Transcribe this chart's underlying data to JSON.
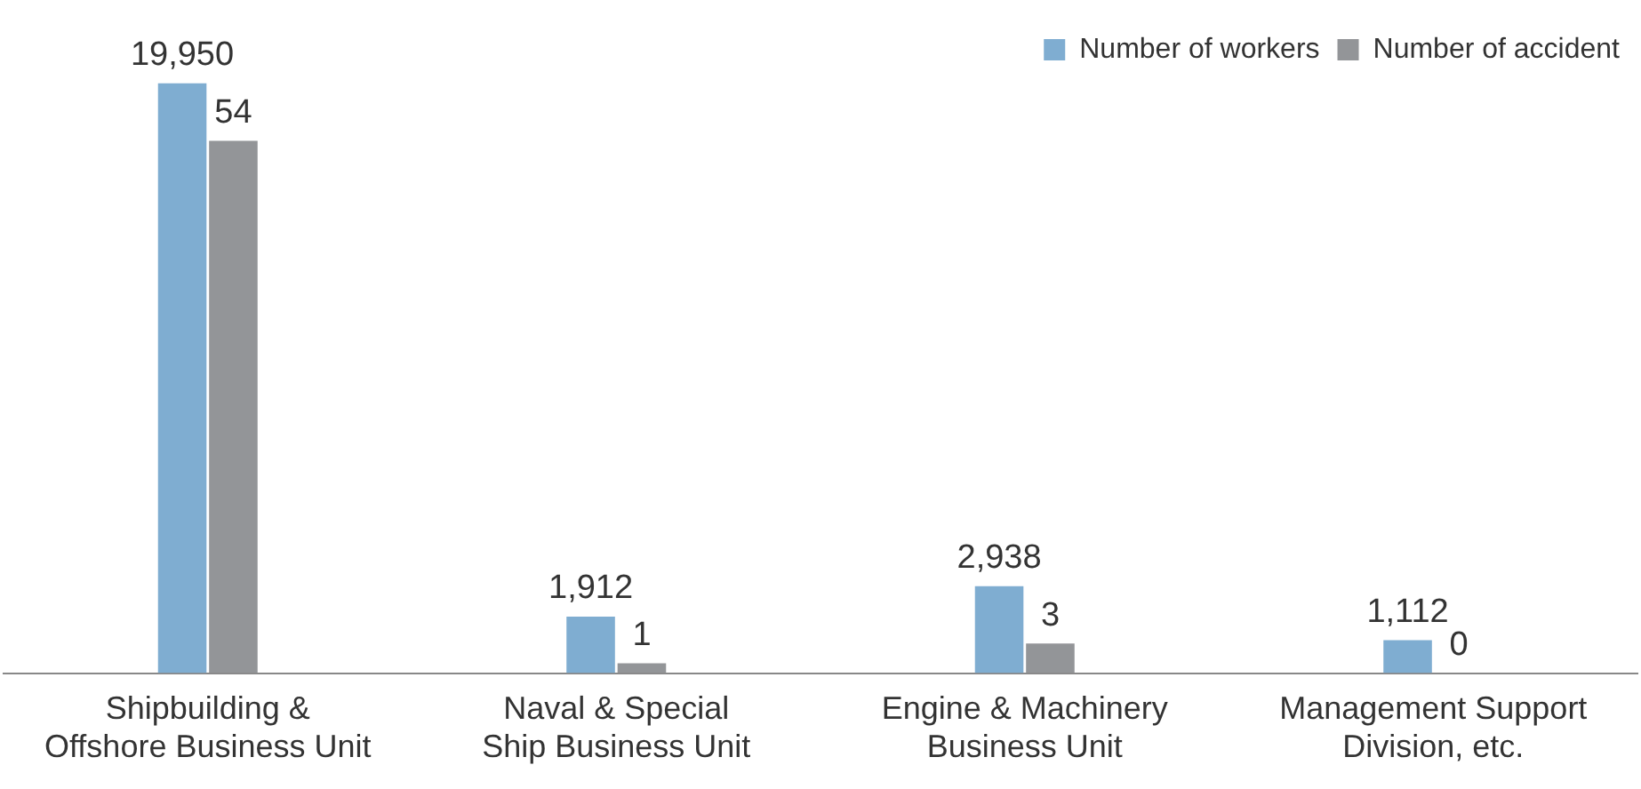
{
  "chart_data": {
    "type": "bar",
    "categories": [
      "Shipbuilding & Offshore Business Unit",
      "Naval & Special Ship Business Unit",
      "Engine & Machinery Business Unit",
      "Management Support Division, etc."
    ],
    "series": [
      {
        "name": "Number of workers",
        "color": "#7fadd1",
        "values": [
          19950,
          1912,
          2938,
          1112
        ],
        "value_labels": [
          "19,950",
          "1,912",
          "2,938",
          "1,112"
        ]
      },
      {
        "name": "Number of accident",
        "color": "#939598",
        "values": [
          54,
          1,
          3,
          0
        ],
        "value_labels": [
          "54",
          "1",
          "3",
          "0"
        ],
        "axis": "y2"
      }
    ],
    "legend": "top right",
    "tick_labels": "x"
  }
}
